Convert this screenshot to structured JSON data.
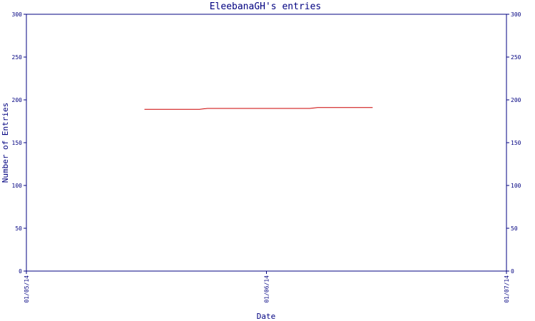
{
  "chart_data": {
    "type": "line",
    "title": "EleebanaGH's entries",
    "xlabel": "Date",
    "ylabel": "Number of Entries",
    "ylim": [
      0,
      300
    ],
    "yticks": [
      0,
      50,
      100,
      150,
      200,
      250,
      300
    ],
    "xticks": [
      "01/05/14",
      "01/06/14",
      "01/07/14"
    ],
    "xlim": [
      "2014-05-01",
      "2014-07-01"
    ],
    "grid": false,
    "series": [
      {
        "color": "#cc0000",
        "points": [
          {
            "x": "2014-05-16",
            "y": 189
          },
          {
            "x": "2014-05-23",
            "y": 189
          },
          {
            "x": "2014-05-24",
            "y": 190
          },
          {
            "x": "2014-06-06",
            "y": 190
          },
          {
            "x": "2014-06-07",
            "y": 191
          },
          {
            "x": "2014-06-14",
            "y": 191
          }
        ]
      }
    ]
  }
}
